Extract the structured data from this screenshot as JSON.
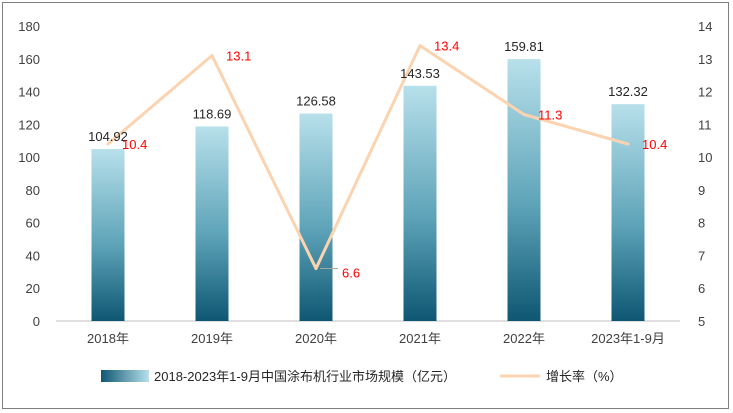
{
  "chart_data": {
    "type": "bar",
    "categories": [
      "2018年",
      "2019年",
      "2020年",
      "2021年",
      "2022年",
      "2023年1-9月"
    ],
    "series": [
      {
        "name": "2018-2023年1-9月中国涂布机行业市场规模（亿元）",
        "type": "bar",
        "axis": "left",
        "values": [
          104.92,
          118.69,
          126.58,
          143.53,
          159.81,
          132.32
        ],
        "labels": [
          "104.92",
          "118.69",
          "126.58",
          "143.53",
          "159.81",
          "132.32"
        ]
      },
      {
        "name": "增长率（%）",
        "type": "line",
        "axis": "right",
        "values": [
          10.4,
          13.1,
          6.6,
          13.4,
          11.3,
          10.4
        ],
        "labels": [
          "10.4",
          "13.1",
          "6.6",
          "13.4",
          "11.3",
          "10.4"
        ]
      }
    ],
    "y_left": {
      "min": 0,
      "max": 180,
      "ticks": [
        "0",
        "20",
        "40",
        "60",
        "80",
        "100",
        "120",
        "140",
        "160",
        "180"
      ]
    },
    "y_right": {
      "min": 5,
      "max": 14,
      "ticks": [
        "5",
        "6",
        "7",
        "8",
        "9",
        "10",
        "11",
        "12",
        "13",
        "14"
      ]
    },
    "grid": false,
    "legend_position": "bottom",
    "colors": {
      "bar_top": "#b7e0ea",
      "bar_bottom": "#0e5773",
      "line": "#fbd3b0",
      "rate_label": "#ff0000",
      "axis_text": "#404040"
    }
  }
}
